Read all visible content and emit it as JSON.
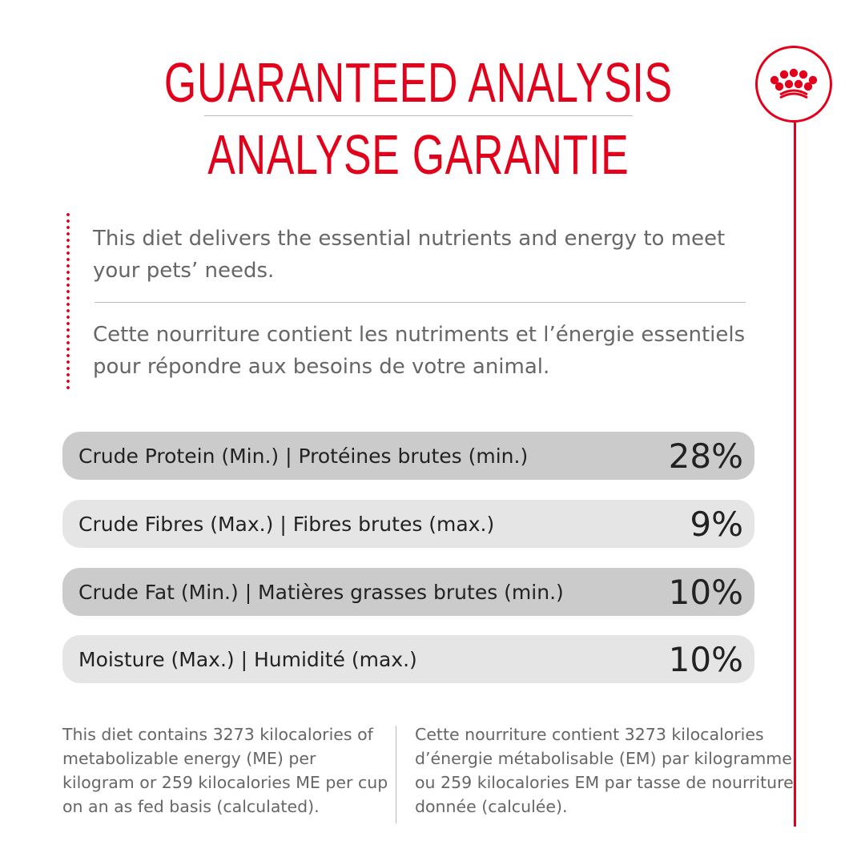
{
  "header": {
    "title_en": "GUARANTEED ANALYSIS",
    "title_fr": "ANALYSE GARANTIE"
  },
  "logo": {
    "name": "royal-canin-crown-logo"
  },
  "intro": {
    "en": "This diet delivers the essential nutrients and energy to meet your pets’ needs.",
    "fr": "Cette nourriture contient les nutriments et l’énergie essentiels pour répondre aux besoins de votre animal."
  },
  "analysis": [
    {
      "label": "Crude Protein (Min.) | Protéines brutes (min.)",
      "value": "28%"
    },
    {
      "label": "Crude Fibres (Max.) | Fibres brutes (max.)",
      "value": "9%"
    },
    {
      "label": "Crude Fat (Min.) | Matières grasses brutes (min.)",
      "value": "10%"
    },
    {
      "label": "Moisture (Max.) | Humidité (max.)",
      "value": "10%"
    }
  ],
  "footer": {
    "en": "This diet contains 3273 kilocalories of metabolizable energy (ME) per kilogram or 259 kilocalories ME per cup on an as fed basis (calculated).",
    "fr": "Cette nourriture contient 3273 kilocalories d’énergie métabolisable (EM) par kilogramme ou 259 kilocalories EM par tasse de nourriture donnée (calculée)."
  },
  "colors": {
    "accent": "#e2001a",
    "row_dark": "#cbcbcb",
    "row_light": "#e5e5e5",
    "text": "#666666"
  }
}
